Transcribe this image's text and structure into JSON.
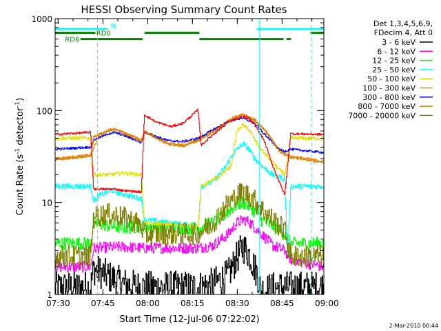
{
  "chart_data": {
    "type": "line",
    "title": "HESSI Observing Summary Count Rates",
    "xlabel": "Start Time (12-Jul-06 07:22:02)",
    "ylabel_main": "Count Rate (s",
    "ylabel_sup1": "-1",
    "ylabel_mid": " detector",
    "ylabel_sup2": "-1",
    "ylabel_end": ")",
    "yscale": "log",
    "ylim": [
      1,
      1000
    ],
    "xlim_minutes": [
      7.0,
      97.0
    ],
    "x_ticks": [
      {
        "m": 8,
        "label": "07:30"
      },
      {
        "m": 23,
        "label": "07:45"
      },
      {
        "m": 38,
        "label": "08:00"
      },
      {
        "m": 53,
        "label": "08:15"
      },
      {
        "m": 68,
        "label": "08:30"
      },
      {
        "m": 83,
        "label": "08:45"
      },
      {
        "m": 98,
        "label": "09:00"
      }
    ],
    "y_ticks": [
      {
        "v": 1,
        "label": "1"
      },
      {
        "v": 10,
        "label": "10"
      },
      {
        "v": 100,
        "label": "100"
      },
      {
        "v": 1000,
        "label": "1000"
      }
    ],
    "legend_header": [
      "Det 1,3,4,5,6,9,",
      "FDecim 4, Att 0"
    ],
    "legend_placement": "right",
    "series": [
      {
        "name": "3 - 6 keV",
        "color": "#000000",
        "x": [
          7,
          19,
          20,
          30,
          36,
          55,
          60,
          65,
          68,
          70,
          72,
          75,
          76,
          82,
          84,
          86,
          97
        ],
        "y": [
          1.2,
          1.2,
          1.9,
          1.3,
          1.2,
          1.2,
          1.3,
          1.6,
          2.5,
          3.3,
          2.8,
          1.6,
          1.1,
          1.2,
          1.2,
          1.2,
          1.2
        ]
      },
      {
        "name": "6 - 12 keV",
        "color": "#ff00ff",
        "x": [
          7,
          19,
          20,
          30,
          36,
          55,
          60,
          65,
          68,
          70,
          72,
          75,
          80,
          84,
          86,
          97
        ],
        "y": [
          2.0,
          2.0,
          3.2,
          3.3,
          3.2,
          3.2,
          3.4,
          4.5,
          6.0,
          6.5,
          6.2,
          5.0,
          3.4,
          3.0,
          2.4,
          2.0
        ]
      },
      {
        "name": "12 - 25 keV",
        "color": "#00ff00",
        "x": [
          7,
          19,
          20,
          30,
          36,
          37,
          55,
          57,
          60,
          63,
          66,
          68,
          70,
          72,
          74,
          76,
          80,
          84,
          86,
          97
        ],
        "y": [
          3.6,
          3.6,
          6.0,
          5.3,
          5.5,
          5.5,
          5.2,
          5.6,
          6.0,
          7.0,
          8.5,
          9.5,
          10.0,
          9.2,
          8.0,
          6.5,
          5.6,
          4.5,
          3.6,
          3.6
        ]
      },
      {
        "name": "25 - 50 keV",
        "color": "#00ffff",
        "x": [
          7,
          19,
          20,
          22,
          26,
          31,
          36,
          37,
          55,
          56,
          60,
          64,
          67,
          70,
          72,
          74,
          77,
          80,
          84,
          85,
          86,
          97
        ],
        "y": [
          15.0,
          15.0,
          10.5,
          12.0,
          13.5,
          12.0,
          11.0,
          6.5,
          5.5,
          15.0,
          17.0,
          24.0,
          35.0,
          44.0,
          38.0,
          30.0,
          24.0,
          20.0,
          18.0,
          2.5,
          15.0,
          15.0
        ]
      },
      {
        "name": "50 - 100 keV",
        "color": "#e0e000",
        "x": [
          7,
          19,
          20,
          25,
          30,
          36,
          37,
          55,
          56,
          62,
          66,
          68,
          70,
          72,
          75,
          78,
          81,
          84,
          86,
          97
        ],
        "y": [
          50.0,
          50.0,
          20.0,
          20.0,
          21.0,
          20.0,
          6.0,
          5.5,
          15.0,
          19.0,
          25.0,
          60.0,
          70.0,
          62.0,
          42.0,
          32.0,
          25.0,
          20.0,
          50.0,
          50.0
        ]
      },
      {
        "name": "100 - 300 keV",
        "color": "#ff8000",
        "x": [
          7,
          19,
          22,
          25,
          27,
          30,
          36,
          37,
          45,
          50,
          55,
          60,
          66,
          70,
          74,
          78,
          82,
          84,
          86,
          97
        ],
        "y": [
          30.0,
          33.0,
          55.0,
          62.0,
          63.0,
          58.0,
          48.0,
          60.0,
          44.0,
          42.0,
          48.0,
          60.0,
          82.0,
          92.0,
          80.0,
          58.0,
          38.0,
          34.0,
          32.0,
          28.0
        ]
      },
      {
        "name": "300 - 800 keV",
        "color": "#0000ff",
        "x": [
          7,
          19,
          20,
          25,
          27,
          30,
          36,
          37,
          45,
          50,
          55,
          60,
          66,
          70,
          74,
          78,
          82,
          84,
          86,
          97
        ],
        "y": [
          38.0,
          40.0,
          48.0,
          56.0,
          58.0,
          54.0,
          45.0,
          58.0,
          47.0,
          46.0,
          50.0,
          62.0,
          78.0,
          84.0,
          72.0,
          52.0,
          38.0,
          36.0,
          38.0,
          35.0
        ]
      },
      {
        "name": "800 - 7000 keV",
        "color": "#d08000",
        "x": [
          7,
          19,
          20,
          25,
          27,
          30,
          36,
          37,
          45,
          50,
          55,
          60,
          66,
          70,
          74,
          78,
          82,
          84,
          86,
          97
        ],
        "y": [
          29.0,
          32.0,
          52.0,
          60.0,
          62.0,
          57.0,
          46.0,
          59.0,
          43.0,
          41.0,
          47.0,
          58.0,
          80.0,
          90.0,
          78.0,
          57.0,
          37.0,
          33.0,
          31.0,
          27.0
        ]
      },
      {
        "name": "7000 - 20000 keV",
        "color": "#808000",
        "x": [
          7,
          19,
          20,
          24,
          28,
          34,
          36,
          37,
          55,
          60,
          64,
          68,
          70,
          72,
          74,
          77,
          80,
          84,
          86,
          97
        ],
        "y": [
          2.6,
          2.6,
          6.8,
          7.5,
          7.2,
          6.2,
          5.5,
          4.5,
          4.6,
          6.0,
          9.0,
          12.0,
          13.0,
          12.0,
          10.5,
          8.0,
          6.5,
          5.0,
          2.6,
          2.6
        ]
      },
      {
        "name": "",
        "color": "#ff0000",
        "x": [
          7,
          19,
          20,
          22,
          27,
          30,
          36,
          37,
          41,
          46,
          50,
          55,
          56,
          60,
          65,
          70,
          72,
          74,
          77,
          80,
          84,
          86,
          97
        ],
        "y": [
          55.0,
          58.0,
          14.0,
          14.0,
          14.0,
          13.5,
          13.0,
          90.0,
          75.0,
          67.0,
          73.0,
          102.0,
          42.0,
          55.0,
          75.0,
          86.0,
          82.0,
          70.0,
          48.0,
          25.0,
          12.0,
          56.0,
          55.0
        ]
      }
    ],
    "attenuator_bars": [
      {
        "x0": 7,
        "x1": 24.5,
        "y": 770,
        "color": "#00ffff"
      },
      {
        "x0": 74.5,
        "x1": 97,
        "y": 770,
        "color": "#00ffff"
      },
      {
        "x0": 7,
        "x1": 20.5,
        "y": 700,
        "color": "#008000"
      },
      {
        "x0": 37,
        "x1": 55.3,
        "y": 700,
        "color": "#008000"
      },
      {
        "x0": 92.5,
        "x1": 97,
        "y": 700,
        "color": "#008000"
      },
      {
        "x0": 15.5,
        "x1": 36.3,
        "y": 600,
        "color": "#008000"
      },
      {
        "x0": 55.3,
        "x1": 83.5,
        "y": 600,
        "color": "#008000"
      },
      {
        "x0": 84.5,
        "x1": 86,
        "y": 600,
        "color": "#008000"
      }
    ],
    "vlines": [
      {
        "m": 21.2,
        "dashed": true
      },
      {
        "m": 75.5,
        "dashed": false
      },
      {
        "m": 92.8,
        "dashed": true
      }
    ],
    "flag_labels": [
      {
        "text": "N",
        "m": 25.6,
        "y": 840,
        "color": "#00ffff"
      },
      {
        "text": "RD0",
        "m": 20.8,
        "y": 700,
        "color": "#008000"
      },
      {
        "text": "RD6",
        "m": 10.3,
        "y": 600,
        "color": "#008000"
      }
    ]
  },
  "footer": {
    "timestamp": "2-Mar-2010 00:44"
  }
}
